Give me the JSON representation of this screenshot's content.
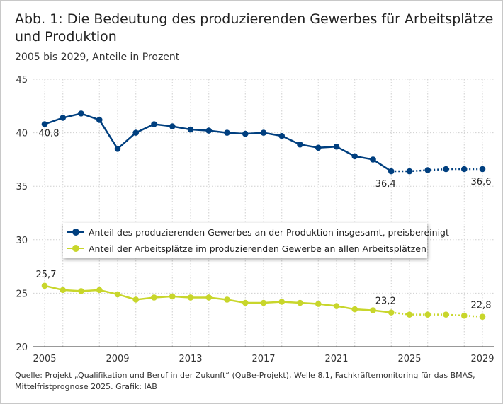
{
  "title": "Abb. 1: Die Bedeutung des produzierenden Gewerbes für Arbeitsplätze und Produktion",
  "subtitle": "2005 bis 2029, Anteile in Prozent",
  "source": "Quelle: Projekt „Qualifikation und Beruf in der Zukunft“ (QuBe-Projekt), Welle 8.1, Fachkräftemonitoring für das BMAS, Mittelfristprognose 2025. Grafik: IAB",
  "chart_data": {
    "type": "line",
    "title": "Abb. 1: Die Bedeutung des produzierenden Gewerbes für Arbeitsplätze und Produktion",
    "subtitle": "2005 bis 2029, Anteile in Prozent",
    "x": [
      2005,
      2006,
      2007,
      2008,
      2009,
      2010,
      2011,
      2012,
      2013,
      2014,
      2015,
      2016,
      2017,
      2018,
      2019,
      2020,
      2021,
      2022,
      2023,
      2024,
      2025,
      2026,
      2027,
      2028,
      2029
    ],
    "xticks": [
      "2005",
      "2009",
      "2013",
      "2017",
      "2021",
      "2025",
      "2029"
    ],
    "yticks": [
      "20",
      "25",
      "30",
      "35",
      "40",
      "45"
    ],
    "ylim": [
      20,
      45
    ],
    "xlim": [
      2005,
      2029
    ],
    "grid": "dotted, horizontal and vertical per year",
    "legend_position": "center-left",
    "forecast_from": 2024,
    "forecast_style": "dotted",
    "series": [
      {
        "name": "Anteil des produzierenden Gewerbes an der Produktion insgesamt, preisbereinigt",
        "color": "#003f7f",
        "values": [
          40.8,
          41.4,
          41.8,
          41.2,
          38.5,
          40.0,
          40.8,
          40.6,
          40.3,
          40.2,
          40.0,
          39.9,
          40.0,
          39.7,
          38.9,
          38.6,
          38.7,
          37.8,
          37.5,
          36.4,
          36.4,
          36.5,
          36.6,
          36.6,
          36.6
        ],
        "labels": [
          {
            "x": 2005,
            "text": "40,8"
          },
          {
            "x": 2024,
            "text": "36,4"
          },
          {
            "x": 2029,
            "text": "36,6"
          }
        ]
      },
      {
        "name": "Anteil der Arbeitsplätze im produzierenden Gewerbe an allen Arbeitsplätzen",
        "color": "#c8d62b",
        "values": [
          25.7,
          25.3,
          25.2,
          25.3,
          24.9,
          24.4,
          24.6,
          24.7,
          24.6,
          24.6,
          24.4,
          24.1,
          24.1,
          24.2,
          24.1,
          24.0,
          23.8,
          23.5,
          23.4,
          23.2,
          23.0,
          23.0,
          23.0,
          22.9,
          22.8
        ],
        "labels": [
          {
            "x": 2005,
            "text": "25,7"
          },
          {
            "x": 2024,
            "text": "23,2"
          },
          {
            "x": 2029,
            "text": "22,8"
          }
        ]
      }
    ]
  }
}
